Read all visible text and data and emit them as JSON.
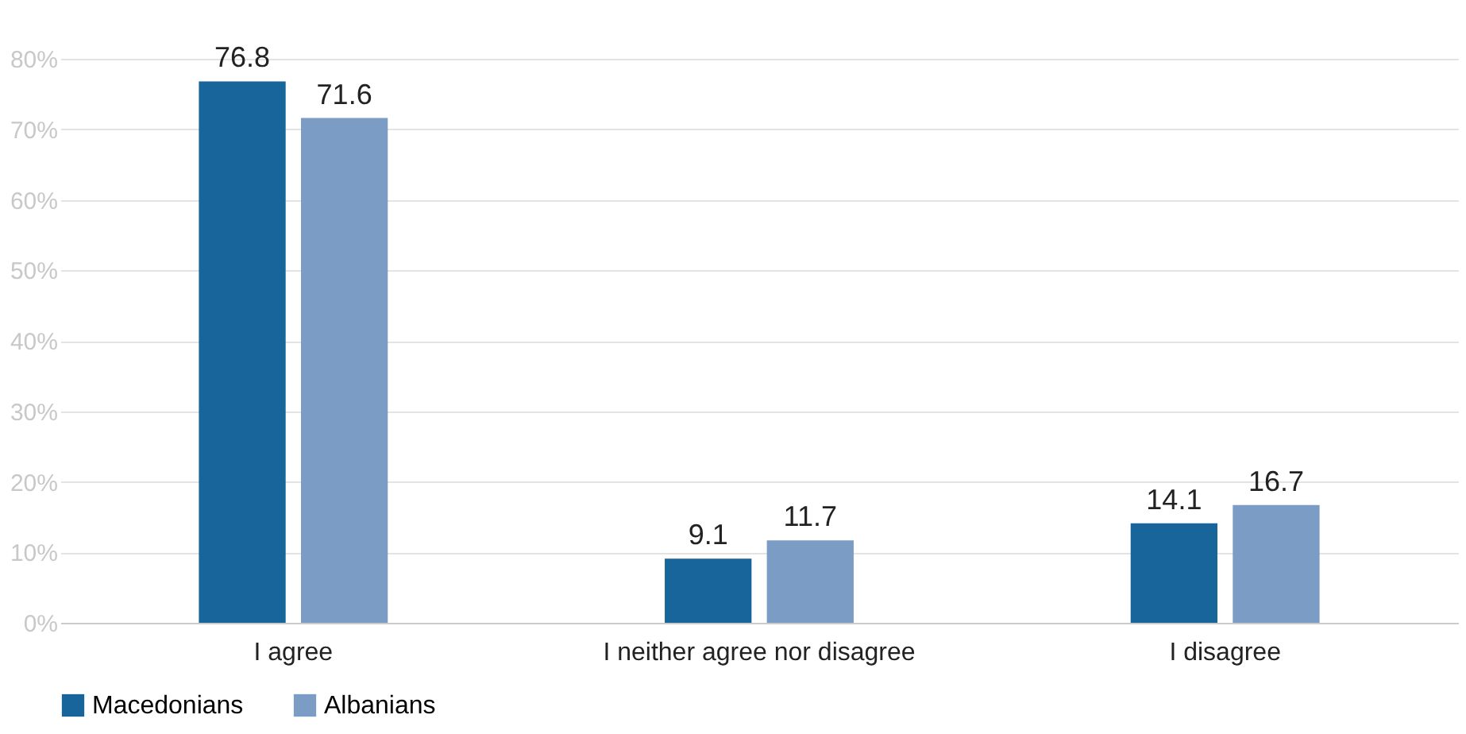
{
  "chart_data": {
    "type": "bar",
    "categories": [
      "I agree",
      "I neither agree nor disagree",
      "I disagree"
    ],
    "series": [
      {
        "name": "Macedonians",
        "color": "#17659a",
        "values": [
          76.8,
          9.1,
          14.1
        ]
      },
      {
        "name": "Albanians",
        "color": "#7b9cc4",
        "values": [
          71.6,
          11.7,
          16.7
        ]
      }
    ],
    "ylim": [
      0,
      80
    ],
    "yticks": [
      {
        "value": 0,
        "label": "0%"
      },
      {
        "value": 10,
        "label": "10%"
      },
      {
        "value": 20,
        "label": "20%"
      },
      {
        "value": 30,
        "label": "30%"
      },
      {
        "value": 40,
        "label": "40%"
      },
      {
        "value": 50,
        "label": "50%"
      },
      {
        "value": 60,
        "label": "60%"
      },
      {
        "value": 70,
        "label": "70%"
      },
      {
        "value": 80,
        "label": "80%"
      }
    ],
    "grid": "y",
    "legend": "bottom",
    "data_labels": true
  }
}
